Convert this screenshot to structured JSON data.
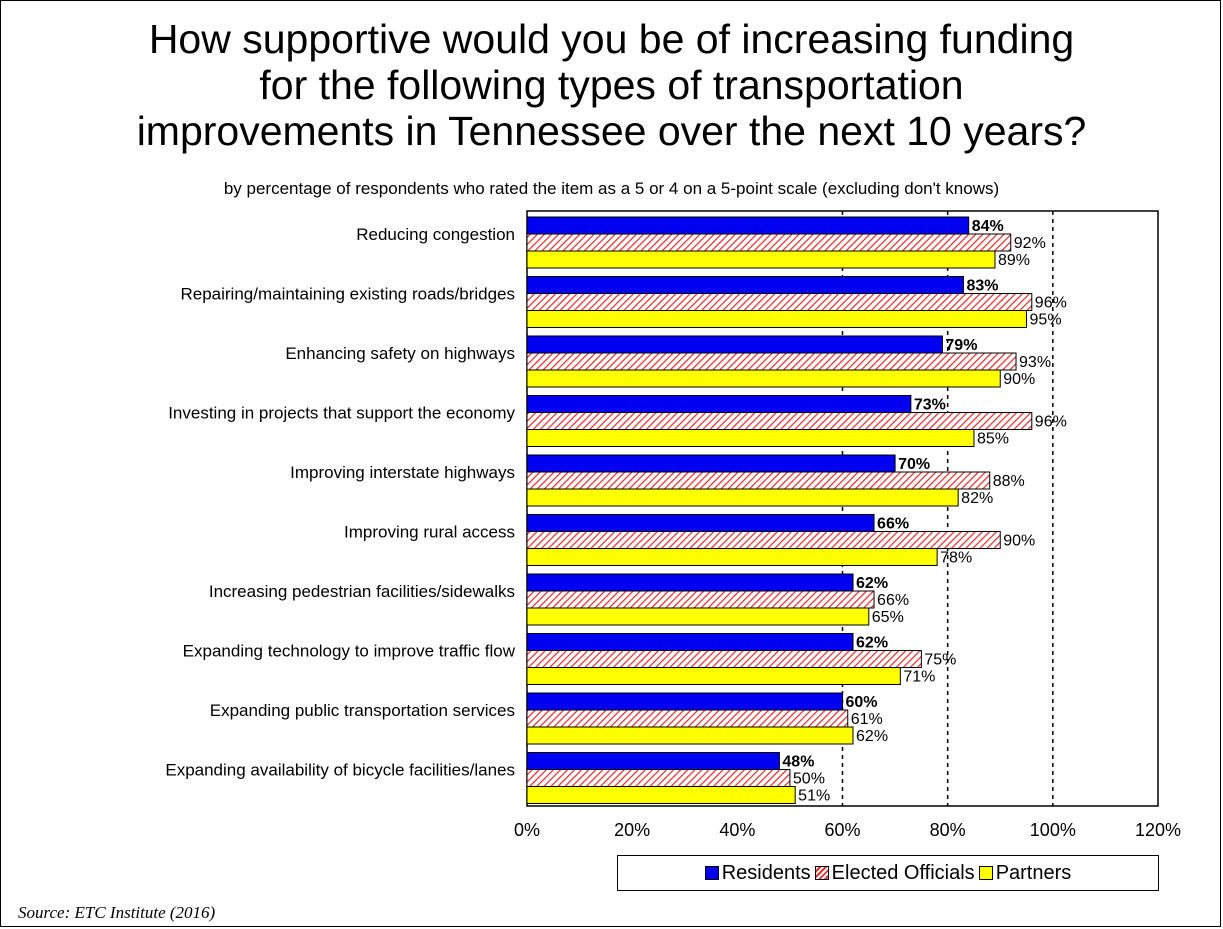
{
  "title_lines": [
    "How supportive would you be of increasing funding",
    "for the following types of transportation",
    "improvements in Tennessee over the next 10 years?"
  ],
  "subtitle": "by percentage of respondents who rated the item as a 5 or 4 on a 5-point scale (excluding don't knows)",
  "source": "Source:  ETC Institute (2016)",
  "colors": {
    "residents": "#0000f0",
    "elected_officials": "#e03030",
    "partners": "#ffff00"
  },
  "chart_data": {
    "type": "bar",
    "orientation": "horizontal",
    "categories": [
      "Reducing congestion",
      "Repairing/maintaining existing roads/bridges",
      "Enhancing safety on highways",
      "Investing in projects that support  the economy",
      "Improving interstate highways",
      "Improving rural access",
      "Increasing pedestrian facilities/sidewalks",
      "Expanding technology to improve traffic flow",
      "Expanding public transportation services",
      "Expanding availability of bicycle facilities/lanes"
    ],
    "series": [
      {
        "name": "Residents",
        "values": [
          84,
          83,
          79,
          73,
          70,
          66,
          62,
          62,
          60,
          48
        ]
      },
      {
        "name": "Elected Officials",
        "values": [
          92,
          96,
          93,
          96,
          88,
          90,
          66,
          75,
          61,
          50
        ]
      },
      {
        "name": "Partners",
        "values": [
          89,
          95,
          90,
          85,
          82,
          78,
          65,
          71,
          62,
          51
        ]
      }
    ],
    "xlim": [
      0,
      120
    ],
    "xticks": [
      "0%",
      "20%",
      "40%",
      "60%",
      "80%",
      "100%",
      "120%"
    ],
    "reference_lines": [
      60,
      80,
      100
    ],
    "legend_position": "bottom-right"
  }
}
